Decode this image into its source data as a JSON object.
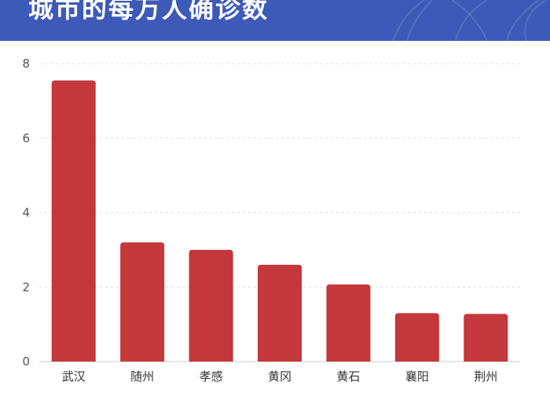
{
  "header": {
    "title": "城市的每万人确诊数",
    "background": "#3e5ab8"
  },
  "chart_data": {
    "type": "bar",
    "categories": [
      "武汉",
      "随州",
      "孝感",
      "黄冈",
      "黄石",
      "襄阳",
      "荆州"
    ],
    "values": [
      7.55,
      3.2,
      3.0,
      2.6,
      2.07,
      1.3,
      1.28
    ],
    "ylim": [
      0,
      8
    ],
    "yticks": [
      0,
      2,
      4,
      6,
      8
    ],
    "bar_color": "#c4373a",
    "grid": true,
    "title": "",
    "xlabel": "",
    "ylabel": ""
  }
}
